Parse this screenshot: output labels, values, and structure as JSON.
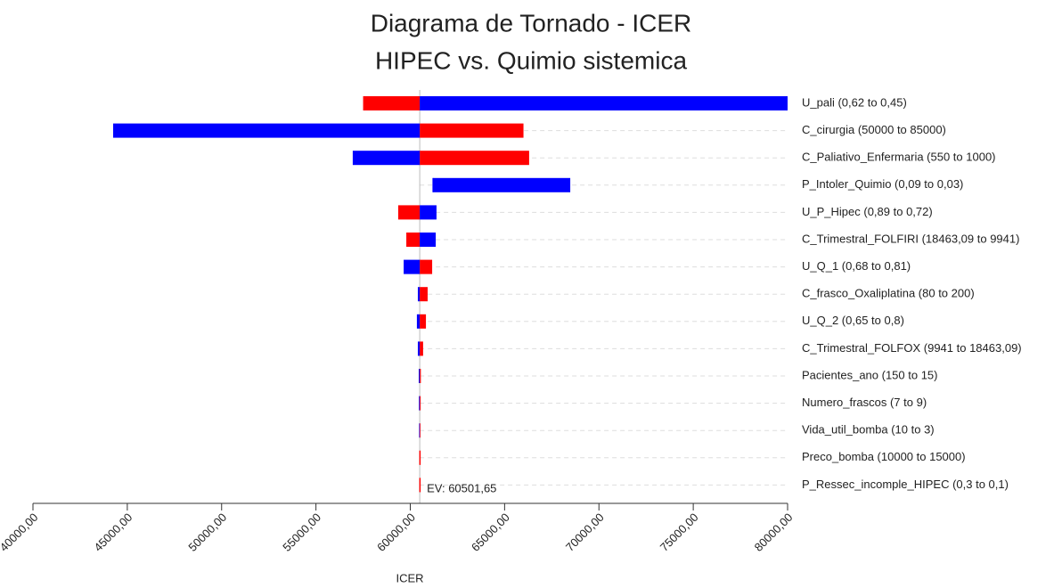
{
  "chart_data": {
    "type": "tornado",
    "title": [
      "Diagrama de Tornado - ICER",
      "HIPEC vs. Quimio sistemica"
    ],
    "xlabel": "ICER",
    "categories": [
      "U_pali (0,62 to 0,45)",
      "C_cirurgia (50000 to 85000)",
      "C_Paliativo_Enfermaria (550 to 1000)",
      "P_Intoler_Quimio (0,09 to 0,03)",
      "U_P_Hipec (0,89 to 0,72)",
      "C_Trimestral_FOLFIRI (18463,09 to 9941)",
      "U_Q_1 (0,68 to 0,81)",
      "C_frasco_Oxaliplatina (80 to 200)",
      "U_Q_2 (0,65 to 0,8)",
      "C_Trimestral_FOLFOX (9941 to 18463,09)",
      "Pacientes_ano (150 to 15)",
      "Numero_frascos (7 to 9)",
      "Vida_util_bomba (10 to 3)",
      "Preco_bomba (10000 to 15000)",
      "P_Ressec_incomple_HIPEC (0,3 to 0,1)"
    ],
    "series": [
      {
        "color": "#ff0000",
        "values": [
          57500,
          66000,
          66300,
          61200,
          59360,
          59790,
          61160,
          60920,
          60830,
          60680,
          60560,
          60550,
          60540,
          60501.65,
          60501.65
        ]
      },
      {
        "color": "#0000ff",
        "values": [
          80000,
          44250,
          56950,
          68480,
          61390,
          61350,
          59650,
          60400,
          60350,
          60400,
          60450,
          60460,
          60470,
          60501.65,
          60501.65
        ]
      }
    ],
    "ev": {
      "value": 60501.65,
      "label": "EV: 60501,65"
    },
    "xlim": [
      40000,
      80000
    ],
    "xticks": [
      {
        "value": 40000,
        "label": "40000,00"
      },
      {
        "value": 45000,
        "label": "45000,00"
      },
      {
        "value": 50000,
        "label": "50000,00"
      },
      {
        "value": 55000,
        "label": "55000,00"
      },
      {
        "value": 60000,
        "label": "60000,00"
      },
      {
        "value": 65000,
        "label": "65000,00"
      },
      {
        "value": 70000,
        "label": "70000,00"
      },
      {
        "value": 75000,
        "label": "75000,00"
      },
      {
        "value": 80000,
        "label": "80000,00"
      }
    ],
    "grid": true
  }
}
